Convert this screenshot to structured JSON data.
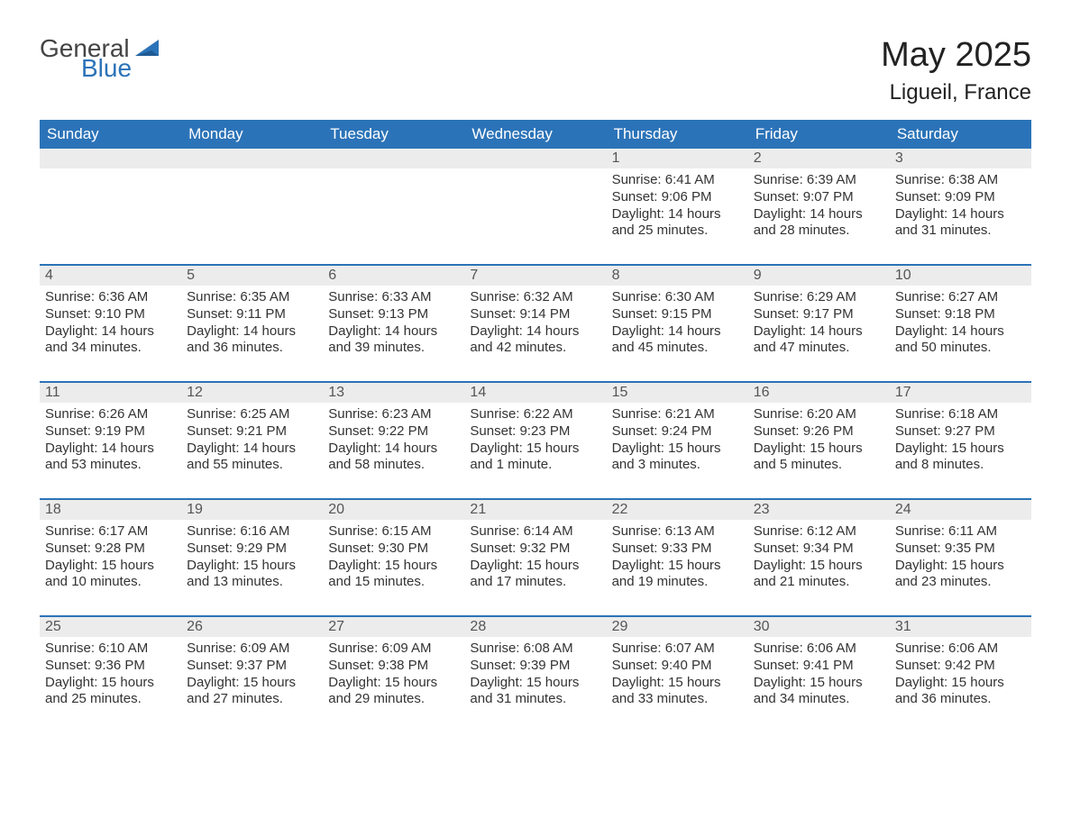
{
  "brand": {
    "part1": "General",
    "part2": "Blue",
    "accent": "#2b73b8",
    "text_color": "#444444"
  },
  "title": "May 2025",
  "location": "Ligueil, France",
  "colors": {
    "header_bg": "#2b73b8",
    "header_fg": "#ffffff",
    "daynum_bg": "#ececec",
    "body_fg": "#333333",
    "rule": "#2b73b8"
  },
  "fonts": {
    "title_size": 38,
    "location_size": 24,
    "header_size": 17,
    "cell_size": 15
  },
  "days_of_week": [
    "Sunday",
    "Monday",
    "Tuesday",
    "Wednesday",
    "Thursday",
    "Friday",
    "Saturday"
  ],
  "weeks": [
    [
      null,
      null,
      null,
      null,
      {
        "n": "1",
        "sunrise": "Sunrise: 6:41 AM",
        "sunset": "Sunset: 9:06 PM",
        "d1": "Daylight: 14 hours",
        "d2": "and 25 minutes."
      },
      {
        "n": "2",
        "sunrise": "Sunrise: 6:39 AM",
        "sunset": "Sunset: 9:07 PM",
        "d1": "Daylight: 14 hours",
        "d2": "and 28 minutes."
      },
      {
        "n": "3",
        "sunrise": "Sunrise: 6:38 AM",
        "sunset": "Sunset: 9:09 PM",
        "d1": "Daylight: 14 hours",
        "d2": "and 31 minutes."
      }
    ],
    [
      {
        "n": "4",
        "sunrise": "Sunrise: 6:36 AM",
        "sunset": "Sunset: 9:10 PM",
        "d1": "Daylight: 14 hours",
        "d2": "and 34 minutes."
      },
      {
        "n": "5",
        "sunrise": "Sunrise: 6:35 AM",
        "sunset": "Sunset: 9:11 PM",
        "d1": "Daylight: 14 hours",
        "d2": "and 36 minutes."
      },
      {
        "n": "6",
        "sunrise": "Sunrise: 6:33 AM",
        "sunset": "Sunset: 9:13 PM",
        "d1": "Daylight: 14 hours",
        "d2": "and 39 minutes."
      },
      {
        "n": "7",
        "sunrise": "Sunrise: 6:32 AM",
        "sunset": "Sunset: 9:14 PM",
        "d1": "Daylight: 14 hours",
        "d2": "and 42 minutes."
      },
      {
        "n": "8",
        "sunrise": "Sunrise: 6:30 AM",
        "sunset": "Sunset: 9:15 PM",
        "d1": "Daylight: 14 hours",
        "d2": "and 45 minutes."
      },
      {
        "n": "9",
        "sunrise": "Sunrise: 6:29 AM",
        "sunset": "Sunset: 9:17 PM",
        "d1": "Daylight: 14 hours",
        "d2": "and 47 minutes."
      },
      {
        "n": "10",
        "sunrise": "Sunrise: 6:27 AM",
        "sunset": "Sunset: 9:18 PM",
        "d1": "Daylight: 14 hours",
        "d2": "and 50 minutes."
      }
    ],
    [
      {
        "n": "11",
        "sunrise": "Sunrise: 6:26 AM",
        "sunset": "Sunset: 9:19 PM",
        "d1": "Daylight: 14 hours",
        "d2": "and 53 minutes."
      },
      {
        "n": "12",
        "sunrise": "Sunrise: 6:25 AM",
        "sunset": "Sunset: 9:21 PM",
        "d1": "Daylight: 14 hours",
        "d2": "and 55 minutes."
      },
      {
        "n": "13",
        "sunrise": "Sunrise: 6:23 AM",
        "sunset": "Sunset: 9:22 PM",
        "d1": "Daylight: 14 hours",
        "d2": "and 58 minutes."
      },
      {
        "n": "14",
        "sunrise": "Sunrise: 6:22 AM",
        "sunset": "Sunset: 9:23 PM",
        "d1": "Daylight: 15 hours",
        "d2": "and 1 minute."
      },
      {
        "n": "15",
        "sunrise": "Sunrise: 6:21 AM",
        "sunset": "Sunset: 9:24 PM",
        "d1": "Daylight: 15 hours",
        "d2": "and 3 minutes."
      },
      {
        "n": "16",
        "sunrise": "Sunrise: 6:20 AM",
        "sunset": "Sunset: 9:26 PM",
        "d1": "Daylight: 15 hours",
        "d2": "and 5 minutes."
      },
      {
        "n": "17",
        "sunrise": "Sunrise: 6:18 AM",
        "sunset": "Sunset: 9:27 PM",
        "d1": "Daylight: 15 hours",
        "d2": "and 8 minutes."
      }
    ],
    [
      {
        "n": "18",
        "sunrise": "Sunrise: 6:17 AM",
        "sunset": "Sunset: 9:28 PM",
        "d1": "Daylight: 15 hours",
        "d2": "and 10 minutes."
      },
      {
        "n": "19",
        "sunrise": "Sunrise: 6:16 AM",
        "sunset": "Sunset: 9:29 PM",
        "d1": "Daylight: 15 hours",
        "d2": "and 13 minutes."
      },
      {
        "n": "20",
        "sunrise": "Sunrise: 6:15 AM",
        "sunset": "Sunset: 9:30 PM",
        "d1": "Daylight: 15 hours",
        "d2": "and 15 minutes."
      },
      {
        "n": "21",
        "sunrise": "Sunrise: 6:14 AM",
        "sunset": "Sunset: 9:32 PM",
        "d1": "Daylight: 15 hours",
        "d2": "and 17 minutes."
      },
      {
        "n": "22",
        "sunrise": "Sunrise: 6:13 AM",
        "sunset": "Sunset: 9:33 PM",
        "d1": "Daylight: 15 hours",
        "d2": "and 19 minutes."
      },
      {
        "n": "23",
        "sunrise": "Sunrise: 6:12 AM",
        "sunset": "Sunset: 9:34 PM",
        "d1": "Daylight: 15 hours",
        "d2": "and 21 minutes."
      },
      {
        "n": "24",
        "sunrise": "Sunrise: 6:11 AM",
        "sunset": "Sunset: 9:35 PM",
        "d1": "Daylight: 15 hours",
        "d2": "and 23 minutes."
      }
    ],
    [
      {
        "n": "25",
        "sunrise": "Sunrise: 6:10 AM",
        "sunset": "Sunset: 9:36 PM",
        "d1": "Daylight: 15 hours",
        "d2": "and 25 minutes."
      },
      {
        "n": "26",
        "sunrise": "Sunrise: 6:09 AM",
        "sunset": "Sunset: 9:37 PM",
        "d1": "Daylight: 15 hours",
        "d2": "and 27 minutes."
      },
      {
        "n": "27",
        "sunrise": "Sunrise: 6:09 AM",
        "sunset": "Sunset: 9:38 PM",
        "d1": "Daylight: 15 hours",
        "d2": "and 29 minutes."
      },
      {
        "n": "28",
        "sunrise": "Sunrise: 6:08 AM",
        "sunset": "Sunset: 9:39 PM",
        "d1": "Daylight: 15 hours",
        "d2": "and 31 minutes."
      },
      {
        "n": "29",
        "sunrise": "Sunrise: 6:07 AM",
        "sunset": "Sunset: 9:40 PM",
        "d1": "Daylight: 15 hours",
        "d2": "and 33 minutes."
      },
      {
        "n": "30",
        "sunrise": "Sunrise: 6:06 AM",
        "sunset": "Sunset: 9:41 PM",
        "d1": "Daylight: 15 hours",
        "d2": "and 34 minutes."
      },
      {
        "n": "31",
        "sunrise": "Sunrise: 6:06 AM",
        "sunset": "Sunset: 9:42 PM",
        "d1": "Daylight: 15 hours",
        "d2": "and 36 minutes."
      }
    ]
  ]
}
